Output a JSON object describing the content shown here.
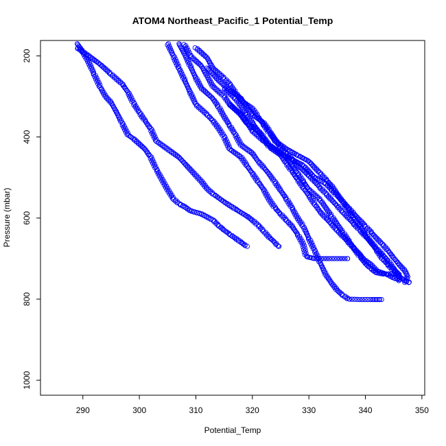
{
  "chart_data": {
    "type": "scatter",
    "title": "ATOM4 Northeast_Pacific_1 Potential_Temp",
    "xlabel": "Potential_Temp",
    "ylabel": "Pressure (mbar)",
    "xlim": [
      282.5,
      350.5
    ],
    "ylim": [
      1037,
      162
    ],
    "y_reversed": true,
    "grid": false,
    "legend": "none",
    "x_ticks": [
      290,
      300,
      310,
      320,
      330,
      340,
      350
    ],
    "y_ticks": [
      200,
      400,
      600,
      800,
      1000
    ],
    "marker": "open-circle",
    "point_color": "#0000ff",
    "profiles": [
      {
        "points": [
          [
            289,
            170
          ],
          [
            290,
            190
          ],
          [
            291,
            215
          ],
          [
            292,
            245
          ],
          [
            293,
            275
          ],
          [
            294,
            300
          ],
          [
            295,
            315
          ],
          [
            296,
            340
          ],
          [
            297,
            368
          ],
          [
            298,
            395
          ],
          [
            299,
            405
          ],
          [
            301,
            430
          ],
          [
            302,
            450
          ],
          [
            303,
            480
          ],
          [
            304,
            505
          ],
          [
            305,
            530
          ],
          [
            306,
            552
          ],
          [
            307,
            565
          ],
          [
            308,
            572
          ],
          [
            309,
            582
          ],
          [
            311,
            590
          ],
          [
            313,
            605
          ],
          [
            314,
            618
          ],
          [
            315,
            630
          ],
          [
            316,
            640
          ],
          [
            317,
            650
          ],
          [
            318,
            660
          ],
          [
            319,
            670
          ]
        ]
      },
      {
        "points": [
          [
            289,
            180
          ],
          [
            291,
            200
          ],
          [
            293,
            220
          ],
          [
            295,
            245
          ],
          [
            297,
            270
          ],
          [
            298,
            290
          ],
          [
            299,
            318
          ],
          [
            300,
            340
          ],
          [
            301,
            360
          ],
          [
            302,
            380
          ],
          [
            303,
            410
          ],
          [
            305,
            430
          ],
          [
            307,
            450
          ],
          [
            309,
            480
          ],
          [
            311,
            510
          ],
          [
            312,
            528
          ],
          [
            313,
            540
          ],
          [
            315,
            560
          ],
          [
            317,
            578
          ],
          [
            319,
            595
          ],
          [
            320,
            605
          ],
          [
            321,
            618
          ],
          [
            322,
            632
          ],
          [
            323,
            648
          ],
          [
            324,
            660
          ],
          [
            324.5,
            670
          ],
          [
            325,
            670
          ]
        ]
      },
      {
        "points": [
          [
            305,
            170
          ],
          [
            306,
            200
          ],
          [
            307,
            230
          ],
          [
            308,
            260
          ],
          [
            309,
            290
          ],
          [
            310,
            320
          ],
          [
            312,
            345
          ],
          [
            313,
            360
          ],
          [
            314,
            378
          ],
          [
            315,
            400
          ],
          [
            316,
            430
          ],
          [
            318,
            450
          ],
          [
            319,
            470
          ],
          [
            320,
            490
          ],
          [
            321,
            510
          ],
          [
            322,
            530
          ],
          [
            323,
            555
          ],
          [
            324,
            575
          ],
          [
            325,
            590
          ],
          [
            326,
            605
          ],
          [
            327,
            620
          ],
          [
            328,
            640
          ],
          [
            329,
            665
          ],
          [
            329.5,
            695
          ],
          [
            331,
            700
          ],
          [
            334,
            700
          ],
          [
            337,
            700
          ]
        ]
      },
      {
        "points": [
          [
            307,
            170
          ],
          [
            308,
            195
          ],
          [
            309,
            225
          ],
          [
            310,
            255
          ],
          [
            311,
            280
          ],
          [
            313,
            305
          ],
          [
            314,
            325
          ],
          [
            315,
            350
          ],
          [
            316,
            372
          ],
          [
            317,
            395
          ],
          [
            318,
            420
          ],
          [
            320,
            440
          ],
          [
            321,
            460
          ],
          [
            322,
            475
          ],
          [
            323,
            492
          ],
          [
            324,
            512
          ],
          [
            325,
            532
          ],
          [
            326,
            552
          ],
          [
            327,
            575
          ],
          [
            328,
            600
          ],
          [
            329,
            620
          ],
          [
            330,
            650
          ],
          [
            331,
            680
          ],
          [
            332,
            710
          ],
          [
            333,
            740
          ],
          [
            334,
            760
          ],
          [
            335,
            778
          ],
          [
            336,
            790
          ],
          [
            337,
            800
          ],
          [
            339,
            801
          ],
          [
            341,
            801
          ],
          [
            343,
            801
          ]
        ]
      },
      {
        "points": [
          [
            308,
            172
          ],
          [
            309,
            200
          ],
          [
            311,
            225
          ],
          [
            312,
            250
          ],
          [
            313,
            275
          ],
          [
            315,
            300
          ],
          [
            316,
            320
          ],
          [
            318,
            345
          ],
          [
            319,
            365
          ],
          [
            320,
            385
          ],
          [
            322,
            410
          ],
          [
            324,
            430
          ],
          [
            326,
            450
          ],
          [
            327,
            470
          ],
          [
            328,
            490
          ],
          [
            329,
            510
          ],
          [
            330,
            530
          ],
          [
            332,
            555
          ],
          [
            333,
            575
          ],
          [
            334,
            595
          ],
          [
            335,
            615
          ],
          [
            336,
            635
          ],
          [
            337,
            655
          ],
          [
            338,
            675
          ],
          [
            339,
            695
          ],
          [
            340,
            712
          ],
          [
            341,
            725
          ],
          [
            342,
            735
          ],
          [
            343,
            738
          ],
          [
            345,
            738
          ],
          [
            346,
            738
          ]
        ]
      },
      {
        "points": [
          [
            310,
            180
          ],
          [
            312,
            205
          ],
          [
            313,
            230
          ],
          [
            315,
            255
          ],
          [
            316,
            270
          ],
          [
            317,
            290
          ],
          [
            318,
            310
          ],
          [
            320,
            330
          ],
          [
            321,
            350
          ],
          [
            322,
            370
          ],
          [
            323,
            390
          ],
          [
            324,
            410
          ],
          [
            326,
            430
          ],
          [
            328,
            445
          ],
          [
            330,
            460
          ],
          [
            331,
            475
          ],
          [
            332,
            490
          ],
          [
            333,
            505
          ],
          [
            334,
            520
          ],
          [
            335,
            540
          ],
          [
            336,
            560
          ],
          [
            337,
            580
          ],
          [
            338,
            600
          ],
          [
            339,
            620
          ],
          [
            340,
            640
          ],
          [
            341,
            660
          ],
          [
            342,
            680
          ],
          [
            343,
            700
          ],
          [
            344,
            715
          ],
          [
            345,
            730
          ],
          [
            346,
            745
          ],
          [
            347,
            755
          ],
          [
            348,
            760
          ]
        ]
      },
      {
        "points": [
          [
            312,
            230
          ],
          [
            314,
            260
          ],
          [
            316,
            285
          ],
          [
            318,
            305
          ],
          [
            319,
            325
          ],
          [
            320,
            345
          ],
          [
            322,
            365
          ],
          [
            323,
            385
          ],
          [
            324,
            405
          ],
          [
            325,
            425
          ],
          [
            326,
            440
          ],
          [
            327,
            455
          ],
          [
            329,
            470
          ],
          [
            330,
            485
          ],
          [
            331,
            500
          ],
          [
            333,
            515
          ],
          [
            334,
            530
          ],
          [
            335,
            545
          ],
          [
            336,
            560
          ],
          [
            337,
            575
          ],
          [
            338,
            590
          ],
          [
            339,
            605
          ],
          [
            340,
            620
          ],
          [
            341,
            635
          ],
          [
            342,
            650
          ],
          [
            343,
            665
          ],
          [
            344,
            680
          ],
          [
            345,
            698
          ],
          [
            346,
            715
          ],
          [
            347,
            730
          ],
          [
            347.5,
            745
          ],
          [
            347,
            760
          ]
        ]
      },
      {
        "points": [
          [
            315,
            280
          ],
          [
            317,
            305
          ],
          [
            318,
            325
          ],
          [
            319,
            345
          ],
          [
            320,
            365
          ],
          [
            321,
            385
          ],
          [
            322,
            400
          ],
          [
            323,
            420
          ],
          [
            325,
            440
          ],
          [
            327,
            455
          ],
          [
            328,
            470
          ],
          [
            329,
            482
          ],
          [
            330,
            495
          ],
          [
            331,
            510
          ],
          [
            332,
            525
          ],
          [
            333,
            540
          ],
          [
            334,
            555
          ],
          [
            335,
            570
          ],
          [
            336,
            585
          ],
          [
            337,
            600
          ],
          [
            338,
            615
          ],
          [
            339,
            630
          ],
          [
            340,
            645
          ],
          [
            341,
            660
          ],
          [
            342,
            675
          ],
          [
            343,
            690
          ],
          [
            344,
            705
          ],
          [
            345,
            725
          ],
          [
            346,
            740
          ],
          [
            346,
            755
          ]
        ]
      },
      {
        "points": [
          [
            316,
            320
          ],
          [
            318,
            345
          ],
          [
            319,
            365
          ],
          [
            321,
            385
          ],
          [
            322,
            405
          ],
          [
            323,
            425
          ],
          [
            325,
            445
          ],
          [
            326,
            465
          ],
          [
            327,
            485
          ],
          [
            328,
            505
          ],
          [
            329,
            525
          ],
          [
            330,
            545
          ],
          [
            331,
            565
          ],
          [
            332,
            585
          ],
          [
            333,
            600
          ],
          [
            334,
            615
          ],
          [
            335,
            630
          ],
          [
            336,
            645
          ],
          [
            337,
            660
          ],
          [
            338,
            675
          ],
          [
            339,
            690
          ],
          [
            340,
            705
          ],
          [
            341,
            715
          ],
          [
            342,
            730
          ],
          [
            344,
            740
          ],
          [
            345,
            748
          ],
          [
            346,
            752
          ]
        ]
      }
    ]
  }
}
